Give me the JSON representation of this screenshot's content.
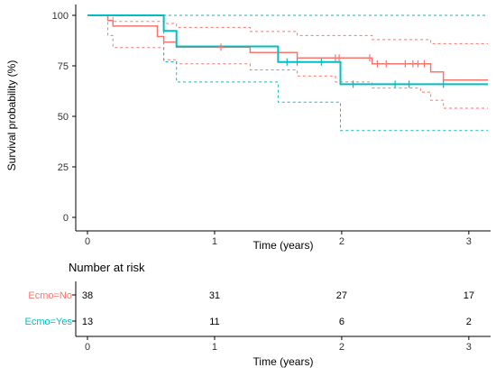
{
  "chart_data": [
    {
      "type": "line",
      "subtype": "kaplan-meier-survival",
      "xlabel": "Time (years)",
      "ylabel": "Survival probability (%)",
      "xlim": [
        0,
        3.15
      ],
      "ylim": [
        0,
        100
      ],
      "x_ticks": [
        "0",
        "1",
        "2",
        "3"
      ],
      "y_ticks": [
        "0",
        "25",
        "50",
        "75",
        "100"
      ],
      "grid": false,
      "series": [
        {
          "name": "Ecmo=No",
          "color": "#F8766D",
          "steps": [
            [
              0,
              100
            ],
            [
              0.16,
              97.4
            ],
            [
              0.2,
              94.7
            ],
            [
              0.55,
              92.1
            ],
            [
              0.55,
              89.5
            ],
            [
              0.6,
              86.8
            ],
            [
              0.7,
              84.2
            ],
            [
              1.28,
              81.6
            ],
            [
              1.65,
              78.9
            ],
            [
              2.24,
              76.0
            ],
            [
              2.7,
              72.0
            ],
            [
              2.8,
              68.0
            ],
            [
              3.15,
              68.0
            ]
          ],
          "ci_lower": [
            [
              0,
              100
            ],
            [
              0.16,
              90
            ],
            [
              0.2,
              84
            ],
            [
              0.6,
              78
            ],
            [
              0.7,
              76
            ],
            [
              1.28,
              73
            ],
            [
              1.65,
              70
            ],
            [
              1.95,
              67
            ],
            [
              2.24,
              64
            ],
            [
              2.62,
              62
            ],
            [
              2.7,
              58
            ],
            [
              2.8,
              54
            ],
            [
              3.15,
              54
            ]
          ],
          "ci_upper": [
            [
              0,
              100
            ],
            [
              0.16,
              100
            ],
            [
              0.2,
              97
            ],
            [
              0.6,
              96
            ],
            [
              0.7,
              94
            ],
            [
              1.28,
              92
            ],
            [
              1.65,
              90
            ],
            [
              2.24,
              88
            ],
            [
              2.7,
              86
            ],
            [
              3.15,
              86
            ]
          ],
          "censored_times": [
            1.05,
            1.95,
            1.98,
            2.22,
            2.28,
            2.35,
            2.5,
            2.56,
            2.6,
            2.65
          ]
        },
        {
          "name": "Ecmo=Yes",
          "color": "#00BFC4",
          "steps": [
            [
              0,
              100
            ],
            [
              0.6,
              92.3
            ],
            [
              0.7,
              84.6
            ],
            [
              1.5,
              76.9
            ],
            [
              1.99,
              65.9
            ],
            [
              3.15,
              65.9
            ]
          ],
          "ci_lower": [
            [
              0,
              100
            ],
            [
              0.6,
              77
            ],
            [
              0.7,
              67
            ],
            [
              1.5,
              57
            ],
            [
              1.99,
              43
            ],
            [
              3.15,
              43
            ]
          ],
          "ci_upper": [
            [
              0,
              100
            ],
            [
              3.15,
              100
            ]
          ],
          "censored_times": [
            1.57,
            1.65,
            1.84,
            2.09,
            2.42,
            2.53,
            2.8
          ]
        }
      ]
    },
    {
      "type": "table",
      "title": "Number at risk",
      "xlabel": "Time (years)",
      "x_ticks": [
        "0",
        "1",
        "2",
        "3"
      ],
      "rows": [
        {
          "label": "Ecmo=No",
          "color": "#F8766D",
          "values": [
            "38",
            "31",
            "27",
            "17"
          ]
        },
        {
          "label": "Ecmo=Yes",
          "color": "#00BFC4",
          "values": [
            "13",
            "11",
            "6",
            "2"
          ]
        }
      ]
    }
  ]
}
